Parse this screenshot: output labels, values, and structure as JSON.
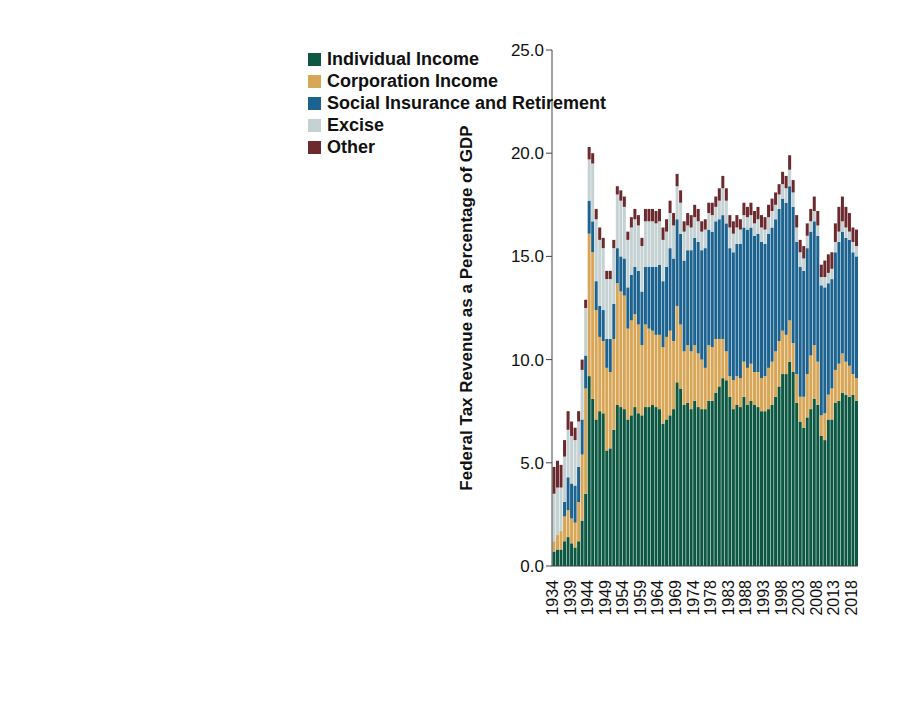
{
  "chart_data": {
    "type": "bar",
    "stacked": true,
    "grid": false,
    "legend": "top",
    "y_label": "Federal Tax Revenue as a Percentage of GDP",
    "categories": [
      "1934",
      null,
      null,
      null,
      null,
      "1939",
      null,
      null,
      null,
      null,
      "1944",
      null,
      null,
      null,
      null,
      "1949",
      null,
      null,
      null,
      null,
      "1954",
      null,
      null,
      null,
      null,
      "1959",
      null,
      null,
      null,
      null,
      "1964",
      null,
      null,
      null,
      null,
      "1969",
      null,
      null,
      null,
      null,
      "1974",
      null,
      null,
      null,
      null,
      "1978",
      null,
      null,
      null,
      null,
      "1983",
      null,
      null,
      null,
      null,
      "1988",
      null,
      null,
      null,
      null,
      "1993",
      null,
      null,
      null,
      null,
      "1998",
      null,
      null,
      null,
      null,
      "2003",
      null,
      null,
      null,
      null,
      "2008",
      null,
      null,
      null,
      null,
      "2013",
      null,
      null,
      null,
      null,
      "2018",
      null
    ],
    "ylim": [
      0,
      25
    ],
    "yticks": [
      {
        "value": 0,
        "label": "0.0"
      },
      {
        "value": 5,
        "label": "5.0"
      },
      {
        "value": 10,
        "label": "10.0"
      },
      {
        "value": 15,
        "label": "15.0"
      },
      {
        "value": 20,
        "label": "20.0"
      },
      {
        "value": 25,
        "label": "25.0"
      }
    ],
    "series": [
      {
        "name": "Individual Income",
        "color": "#0d5842",
        "values": [
          0.7,
          0.8,
          0.8,
          1.2,
          1.4,
          1.1,
          0.9,
          1.2,
          2.2,
          3.5,
          9.2,
          8.1,
          7.1,
          7.5,
          7.4,
          5.6,
          5.7,
          6.6,
          7.8,
          7.7,
          7.6,
          7.1,
          7.3,
          7.7,
          7.4,
          7.3,
          7.7,
          7.7,
          7.8,
          7.7,
          7.6,
          6.9,
          7.1,
          7.3,
          7.6,
          8.9,
          8.6,
          7.8,
          7.9,
          7.6,
          8.0,
          7.7,
          7.6,
          7.6,
          8.0,
          8.0,
          8.4,
          8.7,
          9.1,
          9.0,
          8.2,
          7.6,
          7.8,
          7.7,
          8.2,
          7.8,
          8.0,
          7.8,
          7.7,
          7.5,
          7.5,
          7.6,
          7.8,
          8.2,
          8.7,
          9.3,
          9.3,
          9.9,
          9.4,
          7.9,
          7.0,
          6.7,
          7.2,
          7.6,
          8.1,
          7.8,
          6.3,
          6.1,
          7.1,
          7.1,
          7.9,
          8.0,
          8.4,
          8.3,
          8.2,
          8.3,
          8.0
        ]
      },
      {
        "name": "Corporation Income",
        "color": "#d8a657",
        "values": [
          0.5,
          0.7,
          0.9,
          1.2,
          1.3,
          1.2,
          1.2,
          1.9,
          3.2,
          5.1,
          6.9,
          7.1,
          5.3,
          3.6,
          3.5,
          4.0,
          3.7,
          4.4,
          5.9,
          5.6,
          5.5,
          4.4,
          4.6,
          4.5,
          4.3,
          3.4,
          4.0,
          3.8,
          3.6,
          3.5,
          3.6,
          3.7,
          4.0,
          4.1,
          3.3,
          3.7,
          3.1,
          2.6,
          2.8,
          2.8,
          2.7,
          2.6,
          2.4,
          2.0,
          2.7,
          2.6,
          2.6,
          2.3,
          1.9,
          1.4,
          1.0,
          1.4,
          1.4,
          1.4,
          1.7,
          1.8,
          1.8,
          1.6,
          1.7,
          1.6,
          1.7,
          2.0,
          2.1,
          2.2,
          2.2,
          2.1,
          1.9,
          2.0,
          1.4,
          1.4,
          1.2,
          1.5,
          2.1,
          2.6,
          2.6,
          2.1,
          1.0,
          1.3,
          1.2,
          1.5,
          1.6,
          1.8,
          1.9,
          1.6,
          1.5,
          1.0,
          1.1
        ]
      },
      {
        "name": "Social Insurance and Retirement",
        "color": "#1d6390",
        "values": [
          0.0,
          0.0,
          0.0,
          0.7,
          1.6,
          1.7,
          1.8,
          1.7,
          1.7,
          1.6,
          1.6,
          1.5,
          1.4,
          1.5,
          1.5,
          1.4,
          1.6,
          1.7,
          1.7,
          1.7,
          1.8,
          2.0,
          2.2,
          2.3,
          2.6,
          2.6,
          2.8,
          3.0,
          3.1,
          3.3,
          3.4,
          3.2,
          3.4,
          4.0,
          4.0,
          4.2,
          4.4,
          4.4,
          4.6,
          4.9,
          5.2,
          5.4,
          5.3,
          5.8,
          5.6,
          5.6,
          5.7,
          5.8,
          6.0,
          6.2,
          6.2,
          6.2,
          6.4,
          6.5,
          6.5,
          6.7,
          6.6,
          6.6,
          6.7,
          6.6,
          6.4,
          6.5,
          6.5,
          6.4,
          6.4,
          6.4,
          6.4,
          6.5,
          6.6,
          6.4,
          6.3,
          6.1,
          6.1,
          6.0,
          6.0,
          6.1,
          6.3,
          6.1,
          5.4,
          5.3,
          5.7,
          5.9,
          5.9,
          6.0,
          6.1,
          5.9,
          5.9
        ]
      },
      {
        "name": "Excise",
        "color": "#c5d2d3",
        "values": [
          2.3,
          2.3,
          2.1,
          2.2,
          2.3,
          2.3,
          2.2,
          2.2,
          2.4,
          2.3,
          2.0,
          2.8,
          3.0,
          3.2,
          3.0,
          2.9,
          2.9,
          2.7,
          2.6,
          2.7,
          2.5,
          2.3,
          2.3,
          2.3,
          2.2,
          2.2,
          2.2,
          2.2,
          2.2,
          2.1,
          2.1,
          2.0,
          1.7,
          1.7,
          1.6,
          1.6,
          1.5,
          1.4,
          1.2,
          1.1,
          1.0,
          1.0,
          0.9,
          0.9,
          0.8,
          0.8,
          0.7,
          0.9,
          1.3,
          1.1,
          1.0,
          0.9,
          0.8,
          0.7,
          0.6,
          0.6,
          0.6,
          0.6,
          0.7,
          0.7,
          0.7,
          0.8,
          0.8,
          0.7,
          0.7,
          0.7,
          0.7,
          0.8,
          0.7,
          0.7,
          0.7,
          0.6,
          0.6,
          0.5,
          0.5,
          0.5,
          0.4,
          0.5,
          0.5,
          0.5,
          0.5,
          0.5,
          0.5,
          0.5,
          0.4,
          0.5,
          0.5
        ]
      },
      {
        "name": "Other",
        "color": "#6c2a2e",
        "values": [
          1.3,
          1.3,
          1.1,
          0.8,
          0.9,
          0.7,
          0.6,
          0.5,
          0.5,
          0.4,
          0.6,
          0.5,
          0.5,
          0.6,
          0.5,
          0.4,
          0.4,
          0.4,
          0.4,
          0.5,
          0.5,
          0.4,
          0.5,
          0.5,
          0.5,
          0.4,
          0.6,
          0.6,
          0.6,
          0.6,
          0.6,
          0.6,
          0.6,
          0.6,
          0.6,
          0.6,
          0.6,
          0.5,
          0.6,
          0.6,
          0.6,
          0.6,
          0.5,
          0.5,
          0.5,
          0.6,
          0.5,
          0.6,
          0.6,
          0.6,
          0.6,
          0.6,
          0.6,
          0.5,
          0.6,
          0.5,
          0.6,
          0.6,
          0.6,
          0.6,
          0.6,
          0.6,
          0.6,
          0.6,
          0.5,
          0.6,
          0.6,
          0.7,
          0.6,
          0.6,
          0.6,
          0.6,
          0.6,
          0.6,
          0.7,
          0.7,
          0.6,
          0.8,
          0.9,
          0.8,
          0.9,
          1.2,
          1.2,
          1.0,
          0.9,
          0.7,
          0.8
        ]
      }
    ]
  }
}
